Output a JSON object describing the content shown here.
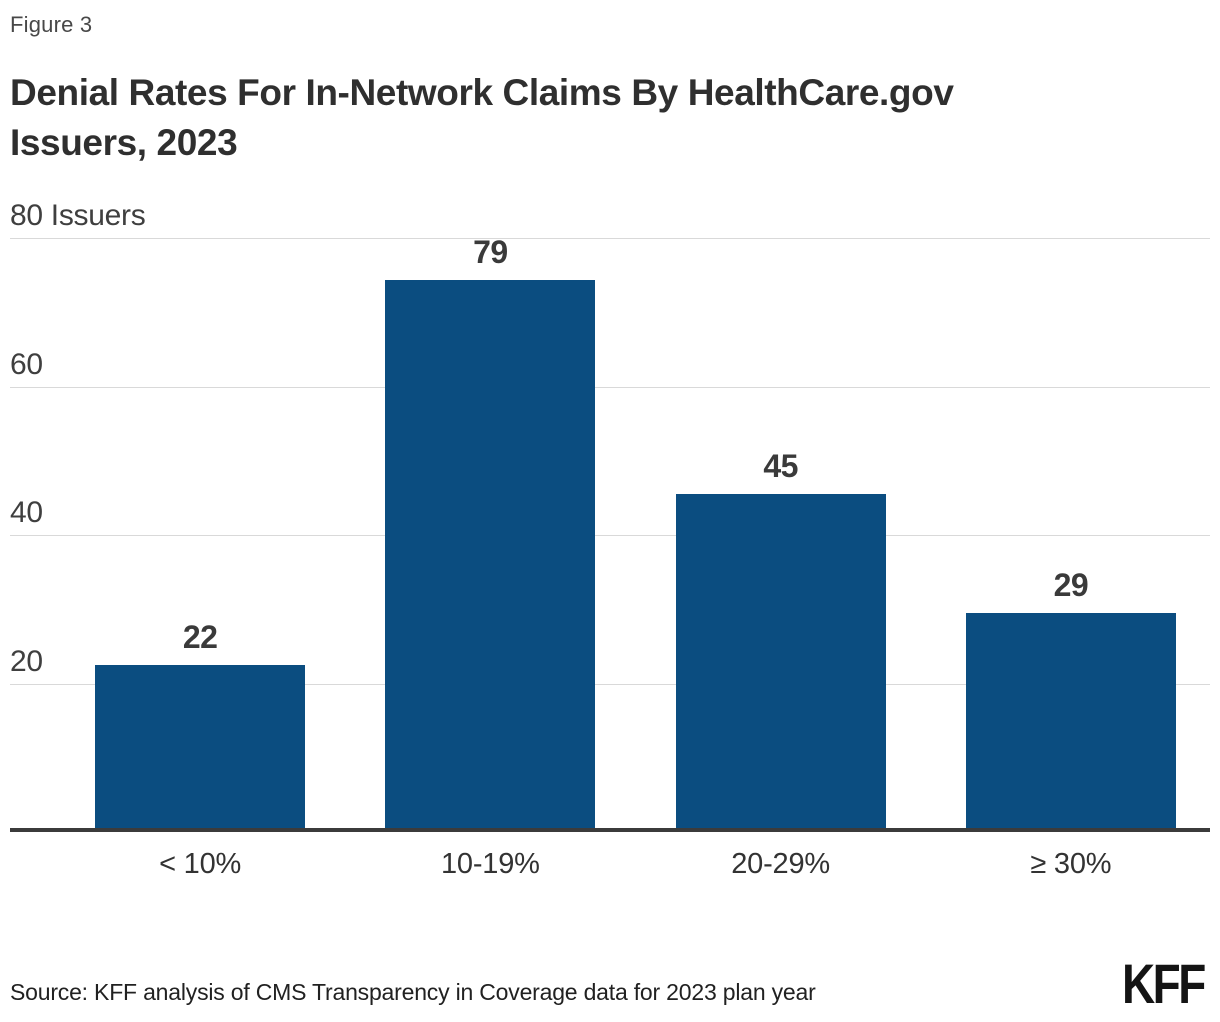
{
  "figure_label": "Figure 3",
  "title": "Denial Rates For In-Network Claims By HealthCare.gov Issuers, 2023",
  "title_lines": [
    "Denial Rates For In-Network Claims By HealthCare.gov",
    "Issuers, 2023"
  ],
  "source": "Source: KFF analysis of CMS Transparency in Coverage data for 2023 plan year",
  "brand": "KFF",
  "colors": {
    "bar": "#0B4D80",
    "axis": "#3B3B3B",
    "gridline": "#D9D9D9",
    "title_text": "#2F2F2F"
  },
  "chart_data": {
    "type": "bar",
    "categories": [
      "< 10%",
      "10-19%",
      "20-29%",
      "≥ 30%"
    ],
    "values": [
      22,
      79,
      45,
      29
    ],
    "title": "Denial Rates For In-Network Claims By HealthCare.gov Issuers, 2023",
    "xlabel": "",
    "ylabel": "Issuers",
    "ylim": [
      0,
      80
    ],
    "yticks": [
      20,
      40,
      60,
      80
    ],
    "ytick_labels": [
      "20",
      "40",
      "60",
      "80 Issuers"
    ],
    "grid": true,
    "legend": false,
    "bar_labels_shown": true
  }
}
